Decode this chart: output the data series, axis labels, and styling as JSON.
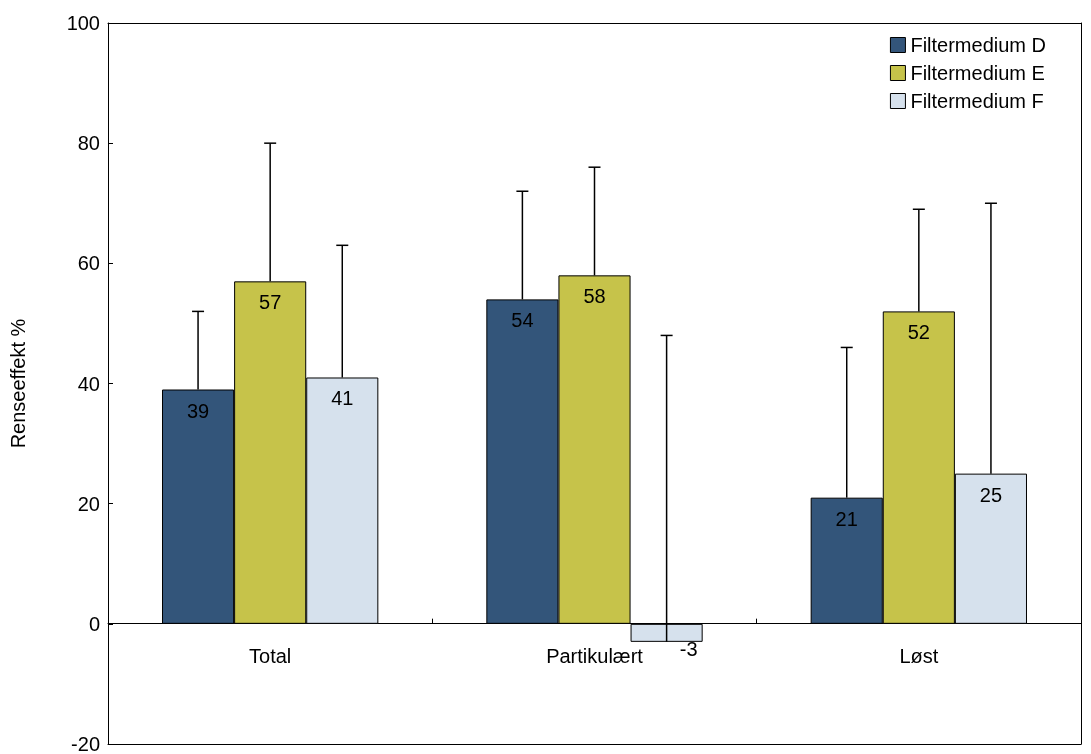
{
  "chart_data": {
    "type": "bar",
    "ylabel": "Renseeffekt %",
    "categories": [
      "Total",
      "Partikulært",
      "Løst"
    ],
    "series": [
      {
        "name": "Filtermedium D",
        "color": "#33557a",
        "values": [
          39,
          54,
          21
        ],
        "errors": [
          [
            39,
            52
          ],
          [
            54,
            72
          ],
          [
            21,
            46
          ]
        ]
      },
      {
        "name": "Filtermedium E",
        "color": "#c6c34a",
        "values": [
          57,
          58,
          52
        ],
        "errors": [
          [
            57,
            80
          ],
          [
            58,
            76
          ],
          [
            52,
            69
          ]
        ]
      },
      {
        "name": "Filtermedium F",
        "color": "#d6e1ed",
        "values": [
          41,
          -3,
          25
        ],
        "errors": [
          [
            41,
            63
          ],
          [
            -3,
            48
          ],
          [
            25,
            70
          ]
        ]
      }
    ],
    "ylim": [
      -20,
      100
    ],
    "yticks": [
      -20,
      0,
      20,
      40,
      60,
      80,
      100
    ],
    "grid": false,
    "legend": "top right",
    "data_labels": true
  }
}
